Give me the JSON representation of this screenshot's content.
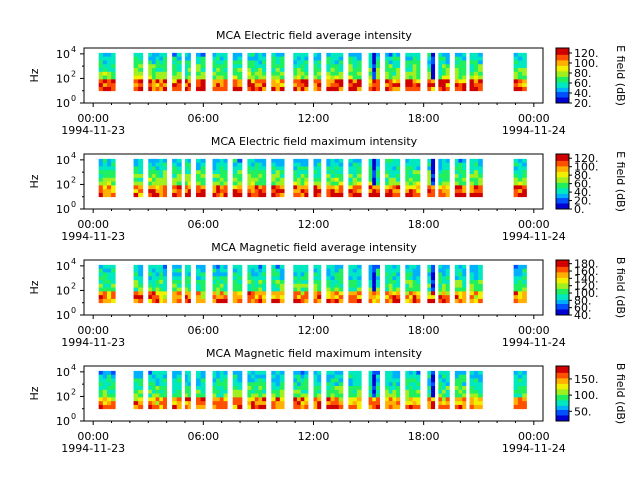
{
  "colors": {
    "background": "#ffffff",
    "axis": "#000000",
    "colormap": [
      "#0000d0",
      "#0050ff",
      "#00b0ff",
      "#00e8c0",
      "#20f060",
      "#a0f020",
      "#f0f000",
      "#ffb000",
      "#ff5000",
      "#d00000"
    ]
  },
  "chart_data": [
    {
      "type": "heatmap",
      "title": "MCA  Electric field average intensity",
      "ylabel": "Hz",
      "y_ticks": [
        "10",
        "10",
        "10"
      ],
      "y_tick_exponents": [
        "0",
        "2",
        "4"
      ],
      "y_scale": "log",
      "ylim": [
        1,
        30000
      ],
      "x_ticks": [
        "00:00",
        "06:00",
        "12:00",
        "18:00",
        "00:00"
      ],
      "x_tick_hours": [
        0,
        6,
        12,
        18,
        24
      ],
      "x_dates": [
        "1994-11-23",
        "1994-11-24"
      ],
      "xlim_hours": [
        -0.5,
        24.5
      ],
      "colorbar": {
        "label": "E field (dB)",
        "ticks": [
          "20.",
          "40.",
          "60.",
          "80.",
          "100.",
          "120."
        ],
        "tick_values": [
          20,
          40,
          60,
          80,
          100,
          120
        ],
        "range": [
          20,
          130
        ]
      },
      "pattern_seed": 1
    },
    {
      "type": "heatmap",
      "title": "MCA  Electric field maximum intensity",
      "ylabel": "Hz",
      "y_ticks": [
        "10",
        "10",
        "10"
      ],
      "y_tick_exponents": [
        "0",
        "2",
        "4"
      ],
      "y_scale": "log",
      "ylim": [
        1,
        30000
      ],
      "x_ticks": [
        "00:00",
        "06:00",
        "12:00",
        "18:00",
        "00:00"
      ],
      "x_tick_hours": [
        0,
        6,
        12,
        18,
        24
      ],
      "x_dates": [
        "1994-11-23",
        "1994-11-24"
      ],
      "xlim_hours": [
        -0.5,
        24.5
      ],
      "colorbar": {
        "label": "E field (dB)",
        "ticks": [
          "0.",
          "20.",
          "40.",
          "60.",
          "80.",
          "100.",
          "120."
        ],
        "tick_values": [
          0,
          20,
          40,
          60,
          80,
          100,
          120
        ],
        "range": [
          0,
          130
        ]
      },
      "pattern_seed": 2
    },
    {
      "type": "heatmap",
      "title": "MCA  Magnetic field average intensity",
      "ylabel": "Hz",
      "y_ticks": [
        "10",
        "10",
        "10"
      ],
      "y_tick_exponents": [
        "0",
        "2",
        "4"
      ],
      "y_scale": "log",
      "ylim": [
        1,
        30000
      ],
      "x_ticks": [
        "00:00",
        "06:00",
        "12:00",
        "18:00",
        "00:00"
      ],
      "x_tick_hours": [
        0,
        6,
        12,
        18,
        24
      ],
      "x_dates": [
        "1994-11-23",
        "1994-11-24"
      ],
      "xlim_hours": [
        -0.5,
        24.5
      ],
      "colorbar": {
        "label": "B field (dB)",
        "ticks": [
          "40.",
          "60.",
          "80.",
          "100.",
          "120.",
          "140.",
          "160.",
          "180."
        ],
        "tick_values": [
          40,
          60,
          80,
          100,
          120,
          140,
          160,
          180
        ],
        "range": [
          40,
          190
        ]
      },
      "pattern_seed": 3
    },
    {
      "type": "heatmap",
      "title": "MCA  Magnetic field maximum intensity",
      "ylabel": "Hz",
      "y_ticks": [
        "10",
        "10",
        "10"
      ],
      "y_tick_exponents": [
        "0",
        "2",
        "4"
      ],
      "y_scale": "log",
      "ylim": [
        1,
        30000
      ],
      "x_ticks": [
        "00:00",
        "06:00",
        "12:00",
        "18:00",
        "00:00"
      ],
      "x_tick_hours": [
        0,
        6,
        12,
        18,
        24
      ],
      "x_dates": [
        "1994-11-23",
        "1994-11-24"
      ],
      "xlim_hours": [
        -0.5,
        24.5
      ],
      "colorbar": {
        "label": "B field (dB)",
        "ticks": [
          "50.",
          "100.",
          "150."
        ],
        "tick_values": [
          50,
          100,
          150
        ],
        "range": [
          20,
          190
        ]
      },
      "pattern_seed": 4
    }
  ],
  "data_segments_hours": [
    [
      0.3,
      1.2
    ],
    [
      2.2,
      2.7
    ],
    [
      3.0,
      4.0
    ],
    [
      4.3,
      4.8
    ],
    [
      5.0,
      5.3
    ],
    [
      5.6,
      6.1
    ],
    [
      6.5,
      7.3
    ],
    [
      7.6,
      8.1
    ],
    [
      8.4,
      9.4
    ],
    [
      9.7,
      10.4
    ],
    [
      10.9,
      11.7
    ],
    [
      12.0,
      12.4
    ],
    [
      12.7,
      13.6
    ],
    [
      13.9,
      14.6
    ],
    [
      15.0,
      15.6
    ],
    [
      15.9,
      16.7
    ],
    [
      17.0,
      17.8
    ],
    [
      18.2,
      18.6
    ],
    [
      18.8,
      19.4
    ],
    [
      19.7,
      20.3
    ],
    [
      20.5,
      21.2
    ],
    [
      22.9,
      23.6
    ]
  ]
}
